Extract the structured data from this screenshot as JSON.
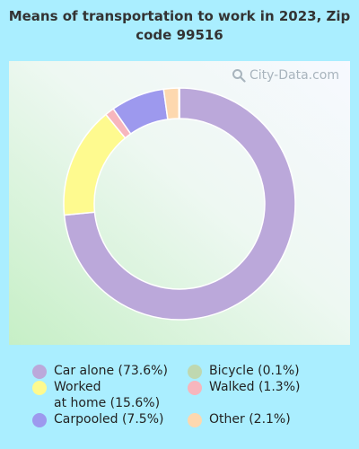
{
  "title": "Means of transportation to work in 2023, Zip code 99516",
  "watermark": "City-Data.com",
  "colors": {
    "background": "#aaeeff"
  },
  "chart_data": {
    "type": "pie",
    "style": "donut",
    "title": "Means of transportation to work in 2023, Zip code 99516",
    "legend_position": "bottom",
    "slices": [
      {
        "label": "Car alone",
        "value": 73.6,
        "color": "#bba8da",
        "legend": "Car alone (73.6%)"
      },
      {
        "label": "Worked at home",
        "value": 15.6,
        "color": "#fefa8f",
        "legend": "Worked\nat home (15.6%)"
      },
      {
        "label": "Walked",
        "value": 1.3,
        "color": "#f7b6bd",
        "legend": "Walked (1.3%)"
      },
      {
        "label": "Carpooled",
        "value": 7.5,
        "color": "#9d99ee",
        "legend": "Carpooled (7.5%)"
      },
      {
        "label": "Other",
        "value": 2.1,
        "color": "#fdd8af",
        "legend": "Other (2.1%)"
      },
      {
        "label": "Bicycle",
        "value": 0.1,
        "color": "#bfd8b0",
        "legend": "Bicycle (0.1%)"
      }
    ]
  }
}
